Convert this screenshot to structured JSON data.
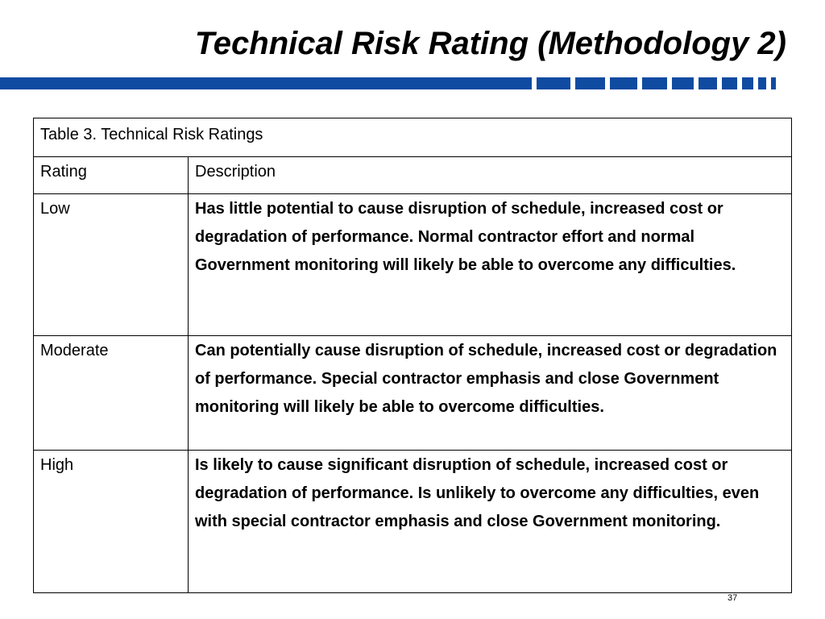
{
  "slide": {
    "title": "Technical Risk Rating (Methodology 2)",
    "accent_color": "#0f4ba1",
    "page_number": "37"
  },
  "table": {
    "caption": "Table 3. Technical Risk Ratings",
    "headers": [
      "Rating",
      "Description"
    ],
    "rows": [
      {
        "rating": "Low",
        "description": "Has little potential to cause disruption of schedule, increased cost or degradation of performance. Normal contractor effort and normal Government monitoring will likely be able to overcome any difficulties."
      },
      {
        "rating": "Moderate",
        "description": "Can potentially cause disruption of schedule, increased cost or degradation of performance. Special contractor emphasis and close Government monitoring will likely be able to overcome difficulties."
      },
      {
        "rating": "High",
        "description": "Is likely to cause significant disruption of schedule, increased cost or degradation of performance. Is unlikely to overcome any difficulties, even with special contractor emphasis and close Government monitoring."
      }
    ]
  }
}
